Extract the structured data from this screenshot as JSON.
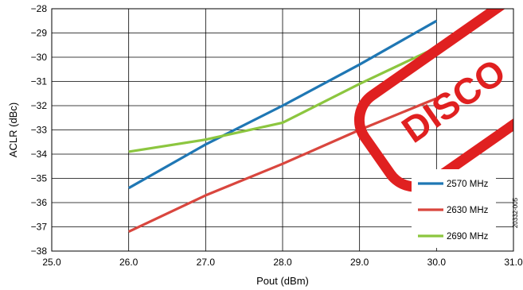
{
  "figure_id": "20332-005",
  "watermark": {
    "text": "DISCO",
    "color": "#e02020"
  },
  "chart_data": {
    "type": "line",
    "xlabel": "Pout (dBm)",
    "ylabel": "ACLR (dBc)",
    "xlim": [
      25.0,
      31.0
    ],
    "ylim": [
      -38,
      -28
    ],
    "x_ticks": [
      "25.0",
      "26.0",
      "27.0",
      "28.0",
      "29.0",
      "30.0",
      "31.0"
    ],
    "y_ticks": [
      "−28",
      "−29",
      "−30",
      "−31",
      "−32",
      "−33",
      "−34",
      "−35",
      "−36",
      "−37",
      "−38"
    ],
    "grid": true,
    "legend_position": "bottom-right",
    "series": [
      {
        "name": "2570 MHz",
        "color": "#1f77b4",
        "x": [
          26.0,
          27.0,
          28.0,
          29.0,
          30.0
        ],
        "y": [
          -35.4,
          -33.6,
          -32.0,
          -30.3,
          -28.5
        ]
      },
      {
        "name": "2630 MHz",
        "color": "#d9463e",
        "x": [
          26.0,
          27.0,
          28.0,
          29.0,
          30.0
        ],
        "y": [
          -37.2,
          -35.7,
          -34.4,
          -33.0,
          -31.7
        ]
      },
      {
        "name": "2690 MHz",
        "color": "#8cc63f",
        "x": [
          26.0,
          27.0,
          28.0,
          29.0,
          30.0
        ],
        "y": [
          -33.9,
          -33.4,
          -32.7,
          -31.1,
          -29.6
        ]
      }
    ]
  }
}
